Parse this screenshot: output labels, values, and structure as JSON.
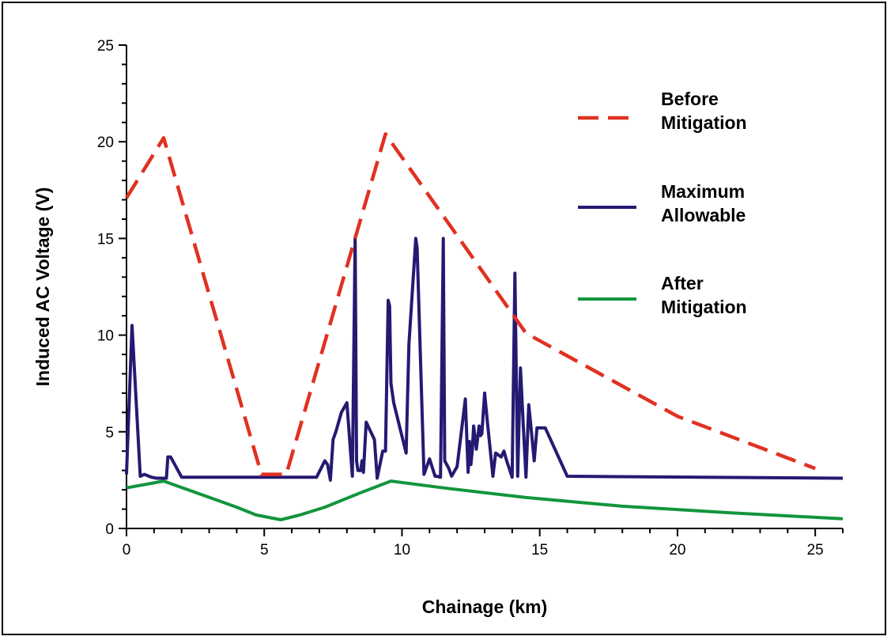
{
  "chart_data": {
    "type": "line",
    "title": "",
    "xlabel": "Chainage (km)",
    "ylabel": "Induced AC Voltage (V)",
    "xlim": [
      0,
      26
    ],
    "ylim": [
      0,
      25
    ],
    "x_ticks": [
      0,
      5,
      10,
      15,
      20,
      25
    ],
    "y_ticks": [
      0,
      5,
      10,
      15,
      20,
      25
    ],
    "x_tick_labels": [
      "0",
      "5",
      "10",
      "15",
      "20",
      "25"
    ],
    "y_tick_labels": [
      "0",
      "5",
      "10",
      "15",
      "20",
      "25"
    ],
    "grid": false,
    "legend_position": "top-right",
    "series": [
      {
        "name_lines": [
          "Before",
          "Mitigation"
        ],
        "color": "#e03121",
        "style": "dashed",
        "x": [
          0,
          1.35,
          4.9,
          5.8,
          9.4,
          14.5,
          20,
          25
        ],
        "y": [
          17.1,
          20.2,
          2.8,
          2.8,
          20.4,
          10.1,
          5.8,
          3.1
        ]
      },
      {
        "name_lines": [
          "Maximum",
          "Allowable"
        ],
        "color": "#241a72",
        "style": "solid",
        "x": [
          0,
          0.2,
          0.5,
          0.65,
          0.9,
          1.1,
          1.45,
          1.5,
          1.6,
          2.0,
          6.9,
          7.2,
          7.3,
          7.4,
          7.5,
          7.6,
          7.8,
          8.0,
          8.2,
          8.3,
          8.35,
          8.4,
          8.5,
          8.55,
          8.6,
          8.7,
          8.8,
          9.0,
          9.1,
          9.3,
          9.4,
          9.5,
          9.55,
          9.6,
          9.7,
          10.15,
          10.25,
          10.5,
          10.55,
          10.8,
          11.0,
          11.2,
          11.25,
          11.4,
          11.5,
          11.55,
          11.7,
          11.8,
          12.0,
          12.3,
          12.4,
          12.45,
          12.5,
          12.55,
          12.6,
          12.7,
          12.8,
          12.85,
          12.9,
          13.0,
          13.1,
          13.3,
          13.4,
          13.6,
          13.7,
          13.8,
          14.0,
          14.1,
          14.2,
          14.3,
          14.4,
          14.5,
          14.6,
          14.7,
          14.8,
          14.9,
          15.2,
          16.0,
          26
        ],
        "y": [
          2.8,
          10.5,
          2.7,
          2.8,
          2.65,
          2.6,
          2.6,
          3.7,
          3.7,
          2.65,
          2.65,
          3.5,
          3.3,
          2.5,
          4.6,
          5.0,
          6.0,
          6.5,
          2.7,
          15.0,
          3.5,
          3.0,
          3.0,
          3.5,
          2.9,
          5.5,
          5.2,
          4.6,
          2.6,
          4.0,
          4.0,
          11.8,
          11.5,
          7.5,
          6.5,
          3.9,
          9.5,
          15.0,
          14.5,
          2.8,
          3.6,
          2.7,
          2.7,
          2.65,
          15.0,
          3.5,
          3.1,
          2.7,
          3.2,
          6.7,
          2.9,
          4.5,
          3.3,
          4.0,
          5.3,
          4.1,
          5.3,
          4.8,
          4.9,
          7.0,
          5.5,
          2.7,
          3.9,
          3.7,
          4.0,
          3.5,
          2.65,
          13.2,
          2.7,
          8.3,
          5.4,
          2.65,
          6.4,
          5.0,
          3.5,
          5.2,
          5.2,
          2.7,
          2.6
        ]
      },
      {
        "name_lines": [
          "After",
          "Mitigation"
        ],
        "color": "#12953c",
        "style": "solid",
        "x": [
          0,
          1.35,
          4.0,
          4.7,
          5.6,
          6.3,
          7.2,
          8.5,
          9.6,
          11.5,
          14.5,
          18,
          22,
          26
        ],
        "y": [
          2.1,
          2.45,
          1.1,
          0.7,
          0.45,
          0.7,
          1.1,
          1.85,
          2.45,
          2.1,
          1.6,
          1.15,
          0.8,
          0.5
        ]
      }
    ]
  }
}
